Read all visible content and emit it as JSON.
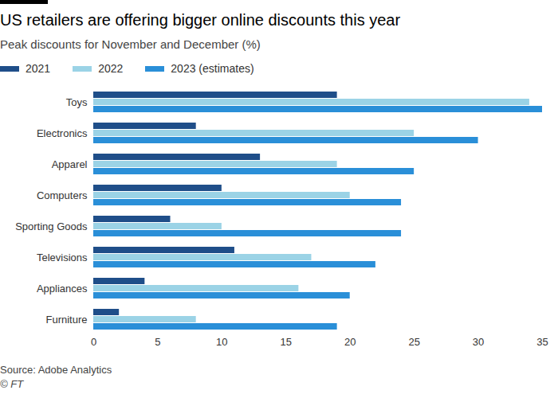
{
  "chart_data": {
    "type": "bar",
    "orientation": "horizontal",
    "title": "US retailers are offering bigger online discounts this year",
    "subtitle": "Peak discounts for November and December (%)",
    "source": "Source: Adobe Analytics",
    "credit": "© FT",
    "legend": "top",
    "categories": [
      "Toys",
      "Electronics",
      "Apparel",
      "Computers",
      "Sporting Goods",
      "Televisions",
      "Appliances",
      "Furniture"
    ],
    "series": [
      {
        "name": "2021",
        "color": "#1f4e89",
        "values": [
          19,
          8,
          13,
          10,
          6,
          11,
          4,
          2
        ]
      },
      {
        "name": "2022",
        "color": "#9bd3e6",
        "values": [
          34,
          25,
          19,
          20,
          10,
          17,
          16,
          8
        ]
      },
      {
        "name": "2023 (estimates)",
        "color": "#2a8fd8",
        "values": [
          35,
          30,
          25,
          24,
          24,
          22,
          20,
          19
        ]
      }
    ],
    "xlim": [
      0,
      35
    ],
    "xticks": [
      0,
      5,
      10,
      15,
      20,
      25,
      30,
      35
    ]
  }
}
